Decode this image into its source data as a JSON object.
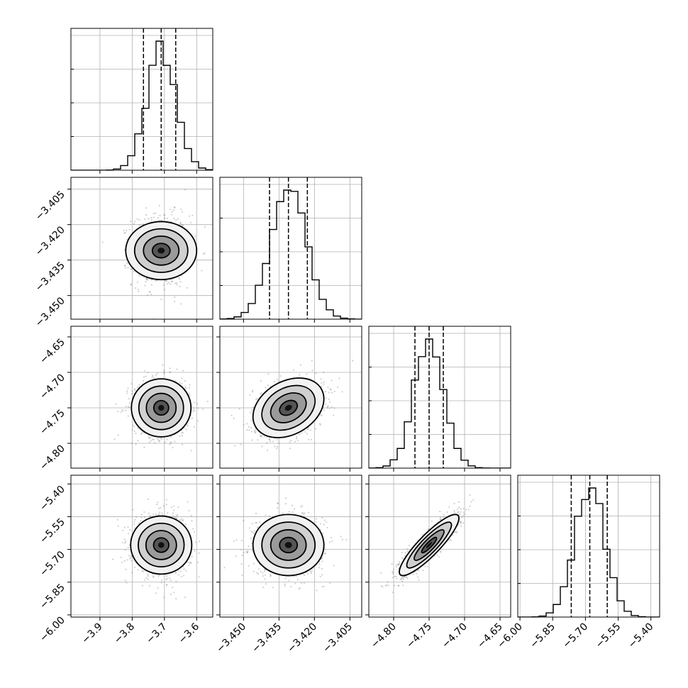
{
  "colors": {
    "points": "#777777",
    "line": "#000000",
    "grid": "#b0b0b0"
  },
  "chart_data": {
    "type": "corner",
    "grid": true,
    "parameters": [
      {
        "center": -3.71,
        "sigma": 0.045,
        "quantiles": [
          -3.765,
          -3.71,
          -3.665
        ],
        "range": [
          -3.99,
          -3.55
        ],
        "ticks": [
          -3.9,
          -3.8,
          -3.7,
          -3.6
        ],
        "tick_labels": [
          "−3.9",
          "−3.8",
          "−3.7",
          "−3.6"
        ]
      },
      {
        "center": -3.431,
        "sigma": 0.0075,
        "quantiles": [
          -3.439,
          -3.431,
          -3.423
        ],
        "range": [
          -3.46,
          -3.4
        ],
        "ticks": [
          -3.45,
          -3.435,
          -3.42,
          -3.405
        ],
        "tick_labels": [
          "−3.450",
          "−3.435",
          "−3.420",
          "−3.405"
        ]
      },
      {
        "center": -4.75,
        "sigma": 0.021,
        "quantiles": [
          -4.77,
          -4.75,
          -4.73
        ],
        "range": [
          -4.835,
          -4.635
        ],
        "ticks": [
          -4.8,
          -4.75,
          -4.7,
          -4.65
        ],
        "tick_labels": [
          "−4.80",
          "−4.75",
          "−4.70",
          "−4.65"
        ]
      },
      {
        "center": -5.68,
        "sigma": 0.07,
        "quantiles": [
          -5.765,
          -5.68,
          -5.6
        ],
        "range": [
          -6.01,
          -5.36
        ],
        "ticks": [
          -6.0,
          -5.85,
          -5.7,
          -5.55,
          -5.4
        ],
        "tick_labels": [
          "−6.00",
          "−5.85",
          "−5.70",
          "−5.55",
          "−5.40"
        ]
      }
    ],
    "correlations": {
      "1-0": 0.0,
      "2-0": 0.0,
      "2-1": 0.3,
      "3-0": 0.0,
      "3-1": 0.0,
      "3-2": 0.88
    },
    "contour_levels_sigma": [
      0.5,
      1.0,
      1.5,
      2.0
    ]
  }
}
